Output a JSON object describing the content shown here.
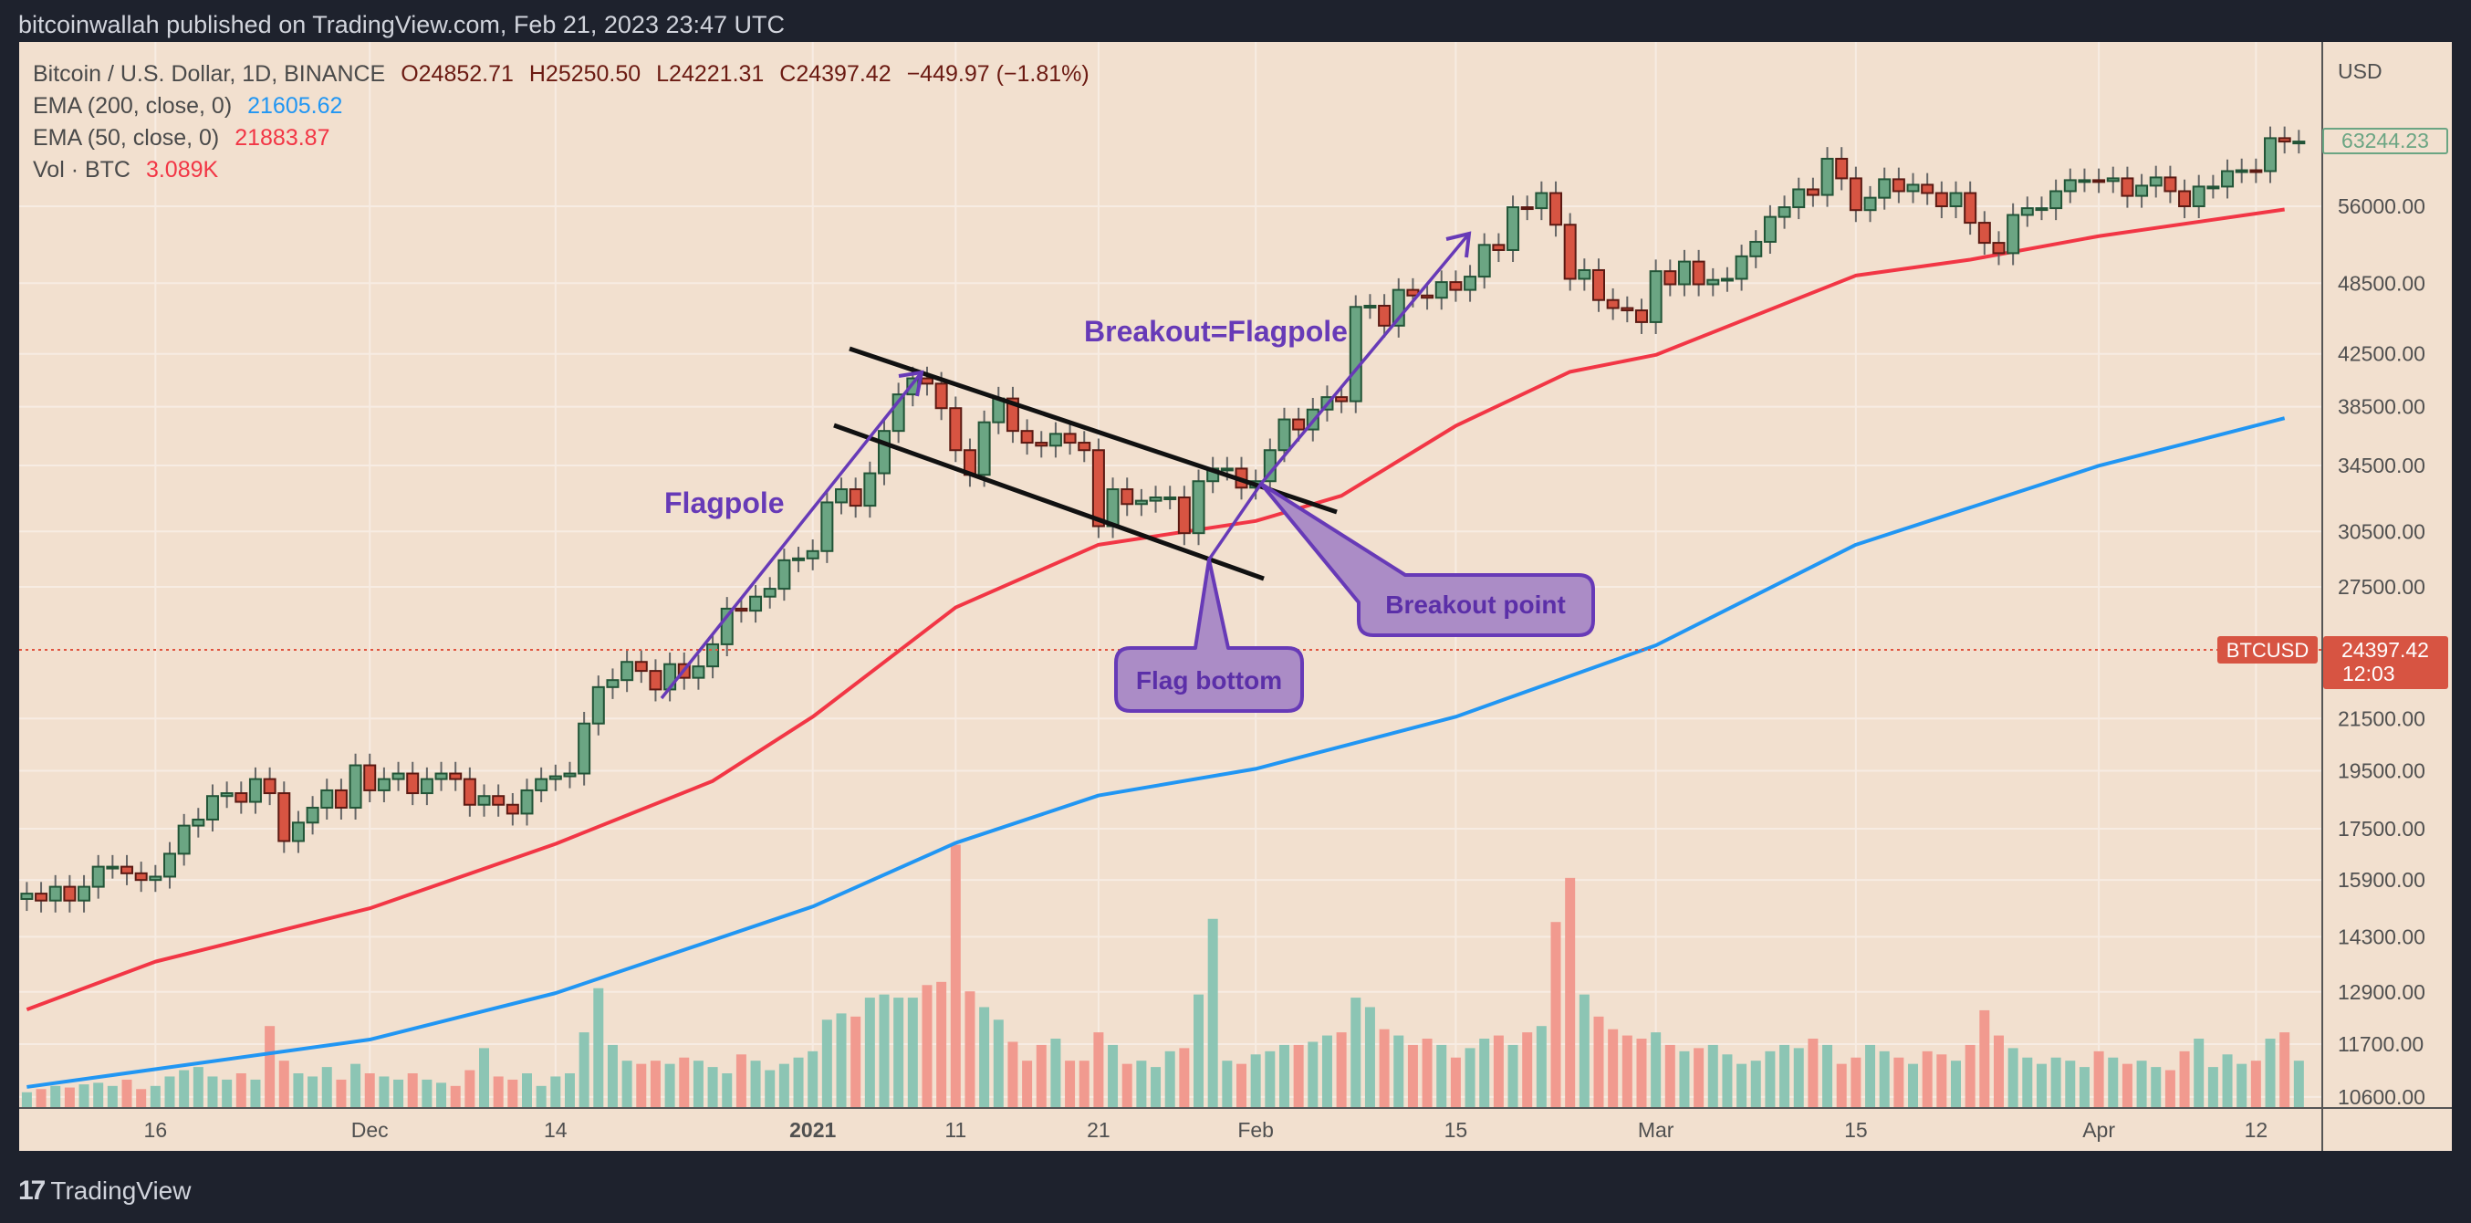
{
  "header": {
    "published": "bitcoinwallah published on TradingView.com, Feb 21, 2023 23:47 UTC"
  },
  "legend": {
    "symbol": "Bitcoin / U.S. Dollar, 1D, BINANCE",
    "open": "O24852.71",
    "high": "H25250.50",
    "low": "L24221.31",
    "close": "C24397.42",
    "change": "−449.97 (−1.81%)",
    "ema200_label": "EMA (200, close, 0)",
    "ema200_value": "21605.62",
    "ema50_label": "EMA (50, close, 0)",
    "ema50_value": "21883.87",
    "vol_label": "Vol · BTC",
    "vol_value": "3.089K"
  },
  "footer": {
    "logo_text": "TradingView",
    "logo_mark": "17"
  },
  "colors": {
    "background": "#f2e0cf",
    "up": "#6ba583",
    "down": "#d75442",
    "vol_up": "#8cc5b4",
    "vol_down": "#f19a8f",
    "ema50": "#f23645",
    "ema200": "#2196f3",
    "annotation": "#673ab7"
  },
  "chart_data": {
    "type": "candlestick",
    "title": "Bitcoin / U.S. Dollar, 1D, BINANCE",
    "ylabel": "USD",
    "yscale": "log",
    "ylim": [
      10300,
      66000
    ],
    "start_date": "2020-11-07",
    "closes_k": [
      15.5,
      15.3,
      15.7,
      15.3,
      15.7,
      16.3,
      16.3,
      16.1,
      15.9,
      16.0,
      16.7,
      17.6,
      17.8,
      18.6,
      18.7,
      18.4,
      19.2,
      18.7,
      17.1,
      17.7,
      18.2,
      18.8,
      18.2,
      19.7,
      18.8,
      19.2,
      19.4,
      18.7,
      19.2,
      19.4,
      19.2,
      18.3,
      18.6,
      18.3,
      18.0,
      18.8,
      19.2,
      19.3,
      19.4,
      21.3,
      22.8,
      23.1,
      23.9,
      23.5,
      22.7,
      23.8,
      23.2,
      23.7,
      24.7,
      26.4,
      26.3,
      27.0,
      27.4,
      28.9,
      29.0,
      29.4,
      32.2,
      33.0,
      32.0,
      34.0,
      36.8,
      39.4,
      40.6,
      40.2,
      38.4,
      35.5,
      33.9,
      37.4,
      39.1,
      36.8,
      36.0,
      35.8,
      36.6,
      36.0,
      35.5,
      30.8,
      33.0,
      32.1,
      32.3,
      32.5,
      32.5,
      30.4,
      33.5,
      34.3,
      34.3,
      33.1,
      33.5,
      35.5,
      37.6,
      36.9,
      38.3,
      39.2,
      38.9,
      46.4,
      46.5,
      44.8,
      47.9,
      47.4,
      47.2,
      48.6,
      47.9,
      49.1,
      52.1,
      51.6,
      55.9,
      55.8,
      57.4,
      54.1,
      48.9,
      49.7,
      47.0,
      46.3,
      46.1,
      45.1,
      49.6,
      48.4,
      50.5,
      48.4,
      48.8,
      48.9,
      51.0,
      52.4,
      54.9,
      55.9,
      57.8,
      57.2,
      61.2,
      59.0,
      55.6,
      56.9,
      58.9,
      57.6,
      58.3,
      57.4,
      56.0,
      57.4,
      54.3,
      52.3,
      51.3,
      55.1,
      55.8,
      55.8,
      57.6,
      58.8,
      58.8,
      58.7,
      59.0,
      57.1,
      58.2,
      59.1,
      57.6,
      56.0,
      58.1,
      58.1,
      59.8,
      59.9,
      59.8,
      63.6,
      63.2,
      63.2
    ],
    "volume_k": [
      10,
      12,
      14,
      13,
      15,
      16,
      14,
      18,
      12,
      14,
      20,
      24,
      26,
      20,
      18,
      22,
      18,
      52,
      30,
      22,
      20,
      26,
      18,
      28,
      22,
      20,
      18,
      22,
      18,
      16,
      14,
      24,
      38,
      20,
      18,
      22,
      14,
      20,
      22,
      48,
      76,
      40,
      30,
      28,
      30,
      28,
      32,
      30,
      26,
      22,
      34,
      30,
      24,
      28,
      32,
      36,
      56,
      60,
      58,
      70,
      72,
      70,
      70,
      78,
      80,
      167,
      74,
      64,
      56,
      42,
      30,
      40,
      44,
      30,
      30,
      48,
      40,
      28,
      30,
      26,
      36,
      38,
      72,
      120,
      30,
      28,
      34,
      36,
      40,
      40,
      42,
      46,
      48,
      70,
      64,
      50,
      46,
      40,
      44,
      40,
      32,
      38,
      44,
      46,
      40,
      48,
      52,
      118,
      146,
      72,
      58,
      50,
      46,
      44,
      48,
      40,
      36,
      38,
      40,
      34,
      28,
      30,
      36,
      40,
      38,
      44,
      40,
      28,
      32,
      40,
      36,
      32,
      28,
      36,
      34,
      30,
      40,
      62,
      46,
      38,
      32,
      28,
      32,
      30,
      26,
      36,
      32,
      28,
      30,
      26,
      24,
      36,
      44,
      26,
      34,
      28,
      30,
      44,
      48,
      30
    ],
    "ema50": {
      "dates": [
        "2020-11-07",
        "2020-11-16",
        "2020-12-01",
        "2020-12-14",
        "2020-12-25",
        "2021-01-01",
        "2021-01-11",
        "2021-01-21",
        "2021-02-01",
        "2021-02-07",
        "2021-02-15",
        "2021-02-23",
        "2021-03-01",
        "2021-03-15",
        "2021-03-23",
        "2021-04-01",
        "2021-04-14"
      ],
      "values": [
        12480,
        13650,
        15080,
        17010,
        19130,
        21570,
        26460,
        29750,
        31100,
        32600,
        37150,
        41100,
        42420,
        49200,
        50680,
        52960,
        55670
      ]
    },
    "ema200": {
      "dates": [
        "2020-11-07",
        "2020-12-01",
        "2020-12-14",
        "2021-01-01",
        "2021-01-11",
        "2021-01-21",
        "2021-02-01",
        "2021-02-15",
        "2021-03-01",
        "2021-03-15",
        "2021-04-01",
        "2021-04-14"
      ],
      "values": [
        10800,
        11800,
        12870,
        15130,
        17040,
        18620,
        19570,
        21570,
        24650,
        29750,
        34480,
        37690
      ]
    },
    "y_ticks": [
      "56000.00",
      "48500.00",
      "42500.00",
      "38500.00",
      "34500.00",
      "30500.00",
      "27500.00",
      "21500.00",
      "19500.00",
      "17500.00",
      "15900.00",
      "14300.00",
      "12900.00",
      "11700.00",
      "10600.00"
    ],
    "x_ticks": [
      {
        "label": "16",
        "date": "2020-11-16"
      },
      {
        "label": "Dec",
        "date": "2020-12-01"
      },
      {
        "label": "14",
        "date": "2020-12-14"
      },
      {
        "label": "2021",
        "date": "2021-01-01",
        "bold": true
      },
      {
        "label": "11",
        "date": "2021-01-11"
      },
      {
        "label": "21",
        "date": "2021-01-21"
      },
      {
        "label": "Feb",
        "date": "2021-02-01"
      },
      {
        "label": "15",
        "date": "2021-02-15"
      },
      {
        "label": "Mar",
        "date": "2021-03-01"
      },
      {
        "label": "15",
        "date": "2021-03-15"
      },
      {
        "label": "Apr",
        "date": "2021-04-01"
      },
      {
        "label": "12",
        "date": "2021-04-12"
      }
    ],
    "last_visible_price": "63244.23",
    "current_price": {
      "symbol": "BTCUSD",
      "value": "24397.42",
      "countdown": "12:03"
    },
    "annotations": {
      "flagpole": "Flagpole",
      "breakout_flagpole": "Breakout=Flagpole",
      "breakout_point": "Breakout point",
      "flag_bottom": "Flag bottom"
    }
  }
}
